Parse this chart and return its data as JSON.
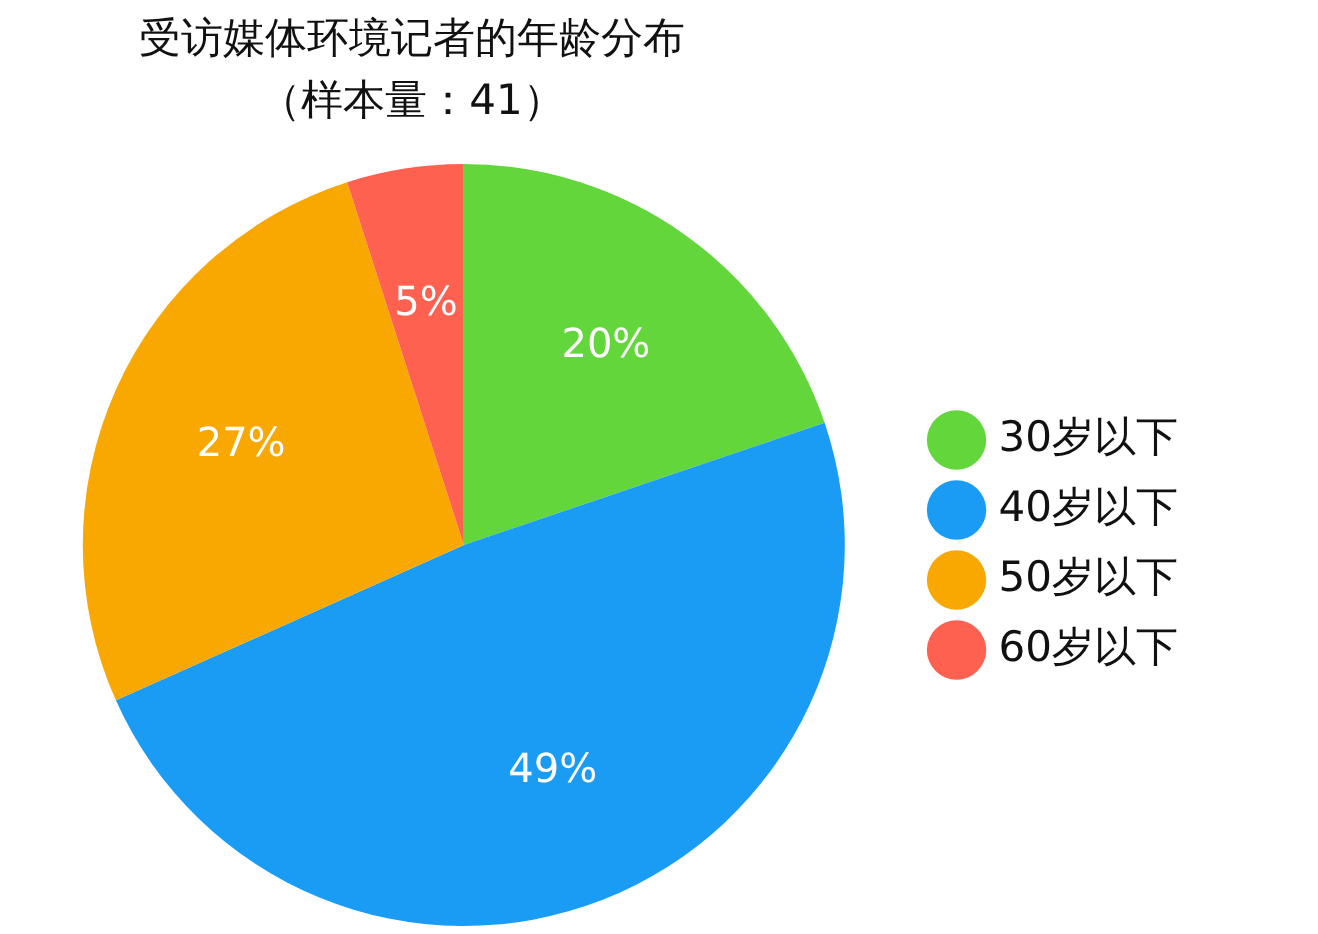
{
  "chart_data": {
    "type": "pie",
    "title": "受访媒体环境记者的年龄分布",
    "subtitle": "（样本量：41）",
    "categories": [
      "30岁以下",
      "40岁以下",
      "50岁以下",
      "60岁以下"
    ],
    "values": [
      20,
      49,
      27,
      5
    ],
    "colors": [
      "#62d63b",
      "#1a9cf5",
      "#f8a800",
      "#fe6150"
    ],
    "value_labels": [
      "20%",
      "49%",
      "27%",
      "5%"
    ],
    "legend": "right"
  }
}
